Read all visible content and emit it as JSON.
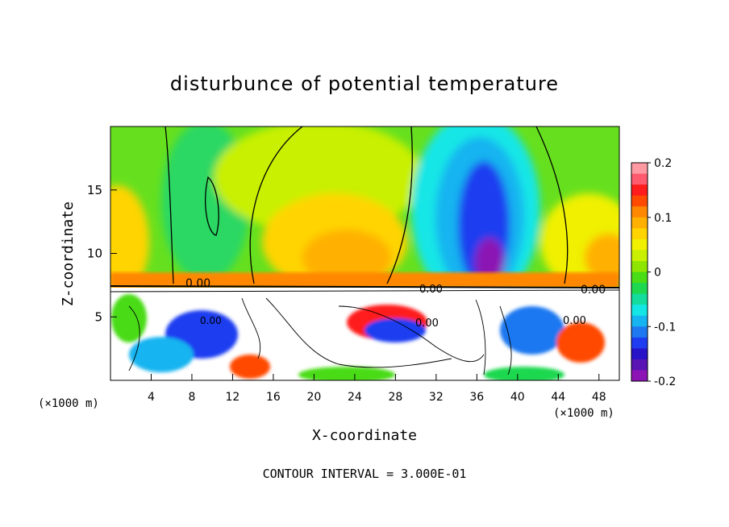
{
  "chart_data": {
    "type": "heatmap",
    "title": "disturbunce of potential temperature",
    "xlabel": "X-coordinate",
    "ylabel": "Z-coordinate",
    "x_unit_left": "(×1000 m)",
    "x_unit_right": "(×1000 m)",
    "xlim": [
      0,
      50
    ],
    "ylim": [
      0,
      20
    ],
    "x_ticks": [
      4,
      8,
      12,
      16,
      20,
      24,
      28,
      32,
      36,
      40,
      44,
      48
    ],
    "y_ticks": [
      5,
      10,
      15
    ],
    "colorbar": {
      "range": [
        -0.2,
        0.2
      ],
      "tick_labels": [
        "0.2",
        "0.1",
        "0",
        "-0.1",
        "-0.2"
      ],
      "tick_values": [
        0.2,
        0.1,
        0,
        -0.1,
        -0.2
      ],
      "colors": [
        "#ff9aa2",
        "#ff5a6e",
        "#ff1c1c",
        "#ff4a00",
        "#ff8800",
        "#ffb000",
        "#ffd400",
        "#f0f000",
        "#c8f000",
        "#8ee600",
        "#4adc14",
        "#1ed850",
        "#14dc9c",
        "#14e6e6",
        "#16b4f0",
        "#1e78f0",
        "#1e3cf0",
        "#2814c8",
        "#5a14b4",
        "#8c14b4"
      ]
    },
    "contour_labels": [
      "0.00",
      "0.00",
      "0.00",
      "0.00",
      "0.00",
      "0.00"
    ],
    "grid": false,
    "legend": "right colorbar"
  },
  "footer": "CONTOUR INTERVAL = 3.000E-01"
}
